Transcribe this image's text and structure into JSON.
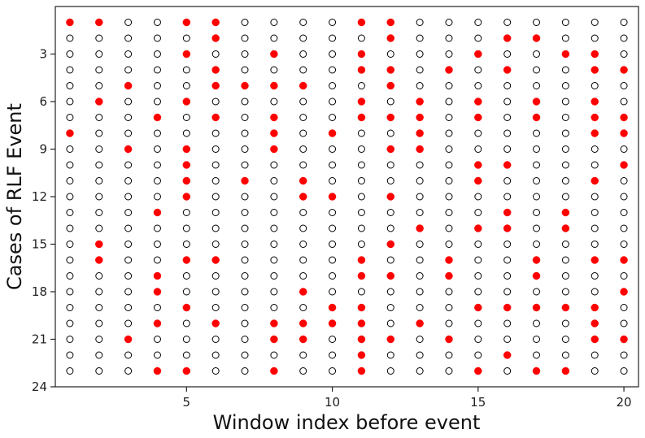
{
  "chart_data": {
    "type": "scatter",
    "title": "",
    "xlabel": "Window index before event",
    "ylabel": "Cases of RLF Event",
    "xlim": [
      0.5,
      20.5
    ],
    "ylim": [
      24,
      0
    ],
    "y_inverted": true,
    "x_ticks": [
      5,
      10,
      15,
      20
    ],
    "y_ticks": [
      3,
      6,
      9,
      12,
      15,
      18,
      21,
      24
    ],
    "grid": false,
    "legend": "none",
    "colors": {
      "marked": "#ff0000",
      "unmarked_edge": "#000000",
      "unmarked_fill": "#ffffff"
    },
    "windows": [
      1,
      2,
      3,
      4,
      5,
      6,
      7,
      8,
      9,
      10,
      11,
      12,
      13,
      14,
      15,
      16,
      17,
      18,
      19,
      20
    ],
    "cases": [
      1,
      2,
      3,
      4,
      5,
      6,
      7,
      8,
      9,
      10,
      11,
      12,
      13,
      14,
      15,
      16,
      17,
      18,
      19,
      20,
      21,
      22,
      23
    ],
    "marked_points": [
      {
        "case": 1,
        "windows": [
          1,
          2,
          5,
          6,
          11,
          12
        ]
      },
      {
        "case": 2,
        "windows": [
          6,
          12,
          16,
          17
        ]
      },
      {
        "case": 3,
        "windows": [
          5,
          8,
          11,
          15,
          18,
          19
        ]
      },
      {
        "case": 4,
        "windows": [
          6,
          11,
          12,
          14,
          16,
          19,
          20
        ]
      },
      {
        "case": 5,
        "windows": [
          3,
          6,
          7,
          8,
          9,
          12
        ]
      },
      {
        "case": 6,
        "windows": [
          2,
          5,
          11,
          13,
          15,
          17,
          19
        ]
      },
      {
        "case": 7,
        "windows": [
          4,
          6,
          8,
          11,
          12,
          13,
          15,
          17,
          19,
          20
        ]
      },
      {
        "case": 8,
        "windows": [
          1,
          8,
          10,
          13,
          19,
          20
        ]
      },
      {
        "case": 9,
        "windows": [
          3,
          5,
          8,
          12,
          13
        ]
      },
      {
        "case": 10,
        "windows": [
          5,
          15,
          16,
          20
        ]
      },
      {
        "case": 11,
        "windows": [
          5,
          7,
          9,
          15,
          19
        ]
      },
      {
        "case": 12,
        "windows": [
          5,
          9,
          10,
          12
        ]
      },
      {
        "case": 13,
        "windows": [
          4,
          16,
          18
        ]
      },
      {
        "case": 14,
        "windows": [
          13,
          15,
          16,
          18
        ]
      },
      {
        "case": 15,
        "windows": [
          2,
          12
        ]
      },
      {
        "case": 16,
        "windows": [
          2,
          5,
          6,
          11,
          14,
          17,
          19,
          20
        ]
      },
      {
        "case": 17,
        "windows": [
          4,
          11,
          12,
          14,
          17
        ]
      },
      {
        "case": 18,
        "windows": [
          4,
          9,
          20
        ]
      },
      {
        "case": 19,
        "windows": [
          5,
          10,
          11,
          15,
          16,
          17,
          18,
          19
        ]
      },
      {
        "case": 20,
        "windows": [
          4,
          6,
          8,
          9,
          10,
          11,
          13,
          19
        ]
      },
      {
        "case": 21,
        "windows": [
          3,
          8,
          9,
          11,
          12,
          14,
          19,
          20
        ]
      },
      {
        "case": 22,
        "windows": [
          11,
          16
        ]
      },
      {
        "case": 23,
        "windows": [
          4,
          5,
          8,
          11,
          15,
          17,
          18
        ]
      }
    ]
  }
}
